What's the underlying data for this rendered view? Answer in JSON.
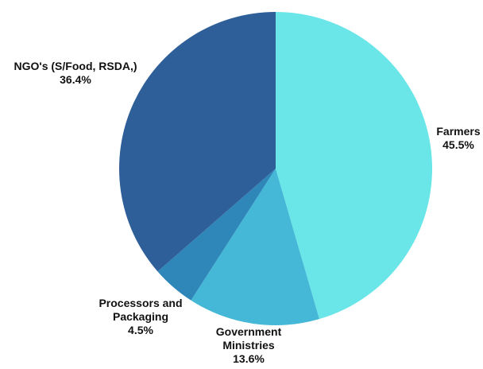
{
  "chart_data": {
    "type": "pie",
    "slices": [
      {
        "label_lines": [
          "Farmers"
        ],
        "value_text": "45.5%",
        "value": 45.5,
        "color": "#6ae5e8"
      },
      {
        "label_lines": [
          "Government",
          "Ministries"
        ],
        "value_text": "13.6%",
        "value": 13.6,
        "color": "#44b8d6"
      },
      {
        "label_lines": [
          "Processors and",
          "Packaging"
        ],
        "value_text": "4.5%",
        "value": 4.5,
        "color": "#2e86b9"
      },
      {
        "label_lines": [
          "NGO's (S/Food, RSDA,)"
        ],
        "value_text": "36.4%",
        "value": 36.4,
        "color": "#2f5f98"
      }
    ],
    "start_angle_deg": 0,
    "direction": "clockwise",
    "legend": "none",
    "labels": "outside"
  }
}
